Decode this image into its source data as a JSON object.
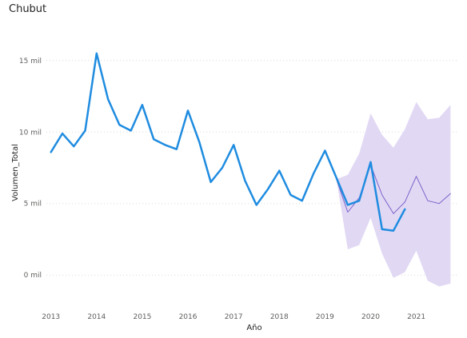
{
  "chart_data": {
    "type": "line",
    "title": "Chubut",
    "xlabel": "Año",
    "ylabel": "Volumen_Total",
    "x_ticks": [
      "2013",
      "2014",
      "2015",
      "2016",
      "2017",
      "2018",
      "2019",
      "2020",
      "2021"
    ],
    "y_ticks": [
      {
        "value": 0,
        "label": "0 mil"
      },
      {
        "value": 5000,
        "label": "5 mil"
      },
      {
        "value": 10000,
        "label": "10 mil"
      },
      {
        "value": 15000,
        "label": "15 mil"
      }
    ],
    "ylim": [
      -2000,
      17000
    ],
    "xlim": [
      2012.9,
      2021.9
    ],
    "grid": true,
    "colors": {
      "actual": "#1f8ce0",
      "forecast": "#7b61c9",
      "band": "#ded4f3",
      "grid": "#d8d8d8"
    },
    "series": [
      {
        "role": "actual",
        "points": [
          [
            2013.0,
            8600
          ],
          [
            2013.25,
            9900
          ],
          [
            2013.5,
            9000
          ],
          [
            2013.75,
            10100
          ],
          [
            2014.0,
            15500
          ],
          [
            2014.25,
            12300
          ],
          [
            2014.5,
            10500
          ],
          [
            2014.75,
            10100
          ],
          [
            2015.0,
            11900
          ],
          [
            2015.25,
            9500
          ],
          [
            2015.5,
            9100
          ],
          [
            2015.75,
            8800
          ],
          [
            2016.0,
            11500
          ],
          [
            2016.25,
            9300
          ],
          [
            2016.5,
            6500
          ],
          [
            2016.75,
            7500
          ],
          [
            2017.0,
            9100
          ],
          [
            2017.25,
            6600
          ],
          [
            2017.5,
            4900
          ],
          [
            2017.75,
            6000
          ],
          [
            2018.0,
            7300
          ],
          [
            2018.25,
            5600
          ],
          [
            2018.5,
            5200
          ],
          [
            2018.75,
            7100
          ],
          [
            2019.0,
            8700
          ],
          [
            2019.25,
            6800
          ],
          [
            2019.5,
            4900
          ],
          [
            2019.75,
            5200
          ],
          [
            2020.0,
            7900
          ],
          [
            2020.25,
            3200
          ],
          [
            2020.5,
            3100
          ],
          [
            2020.75,
            4600
          ]
        ]
      },
      {
        "role": "forecast",
        "points": [
          [
            2019.25,
            6700
          ],
          [
            2019.5,
            4400
          ],
          [
            2019.75,
            5400
          ],
          [
            2020.0,
            7700
          ],
          [
            2020.25,
            5600
          ],
          [
            2020.5,
            4300
          ],
          [
            2020.75,
            5100
          ],
          [
            2021.0,
            6900
          ],
          [
            2021.25,
            5200
          ],
          [
            2021.5,
            5000
          ],
          [
            2021.75,
            5700
          ]
        ]
      }
    ],
    "confidence_band": {
      "x": [
        2019.25,
        2019.5,
        2019.75,
        2020.0,
        2020.25,
        2020.5,
        2020.75,
        2021.0,
        2021.25,
        2021.5,
        2021.75
      ],
      "upper": [
        6700,
        7000,
        8500,
        11300,
        9800,
        8900,
        10200,
        12100,
        10900,
        11000,
        11900
      ],
      "lower": [
        6700,
        1800,
        2100,
        4000,
        1500,
        -200,
        200,
        1700,
        -400,
        -800,
        -600
      ]
    }
  }
}
